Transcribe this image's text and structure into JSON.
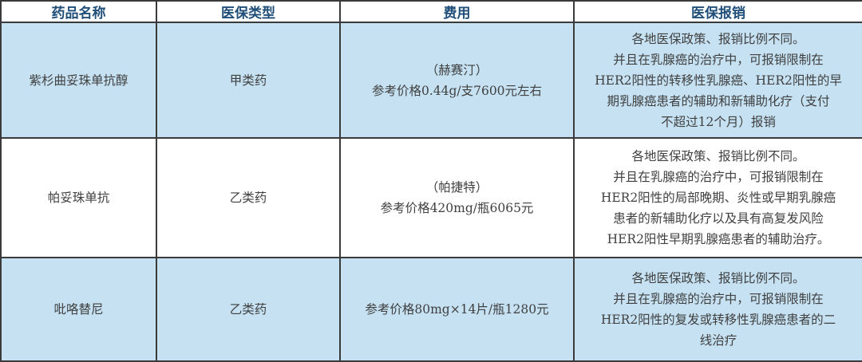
{
  "headers": [
    "药品名称",
    "医保类型",
    "费用",
    "医保报销"
  ],
  "rows": [
    {
      "name": "紫杉曲妥珠单抗醇",
      "type": "甲类药",
      "cost": [
        "（赫赛汀）",
        "参考价格0.44g/支7600元左右"
      ],
      "reimbursement": [
        "各地医保政策、报销比例不同。",
        "并且在乳腺癌的治疗中，可报销限制在",
        "HER2阳性的转移性乳腺癌、HER2阳性的早",
        "期乳腺癌患者的辅助和新辅助化疗（支付",
        "不超过12个月）报销"
      ]
    },
    {
      "name": "帕妥珠单抗",
      "type": "乙类药",
      "cost": [
        "（帕捷特）",
        "参考价格420mg/瓶6065元"
      ],
      "reimbursement": [
        "各地医保政策、报销比例不同。",
        "并且在乳腺癌的治疗中，可报销限制在",
        "HER2阳性的局部晚期、炎性或早期乳腺癌",
        "患者的新辅助化疗以及具有高复发风险",
        "HER2阳性早期乳腺癌患者的辅助治疗。"
      ]
    },
    {
      "name": "吡咯替尼",
      "type": "乙类药",
      "cost": [
        "参考价格80mg×14片/瓶1280元"
      ],
      "reimbursement": [
        "各地医保政策、报销比例不同。",
        "并且在乳腺癌的治疗中，可报销限制在",
        "HER2阳性的复发或转移性乳腺癌患者的二",
        "线治疗"
      ]
    }
  ],
  "colors": {
    "header_text": "#1f4e79",
    "row_blue": "#c5e1f2",
    "body_text": "#404040"
  }
}
